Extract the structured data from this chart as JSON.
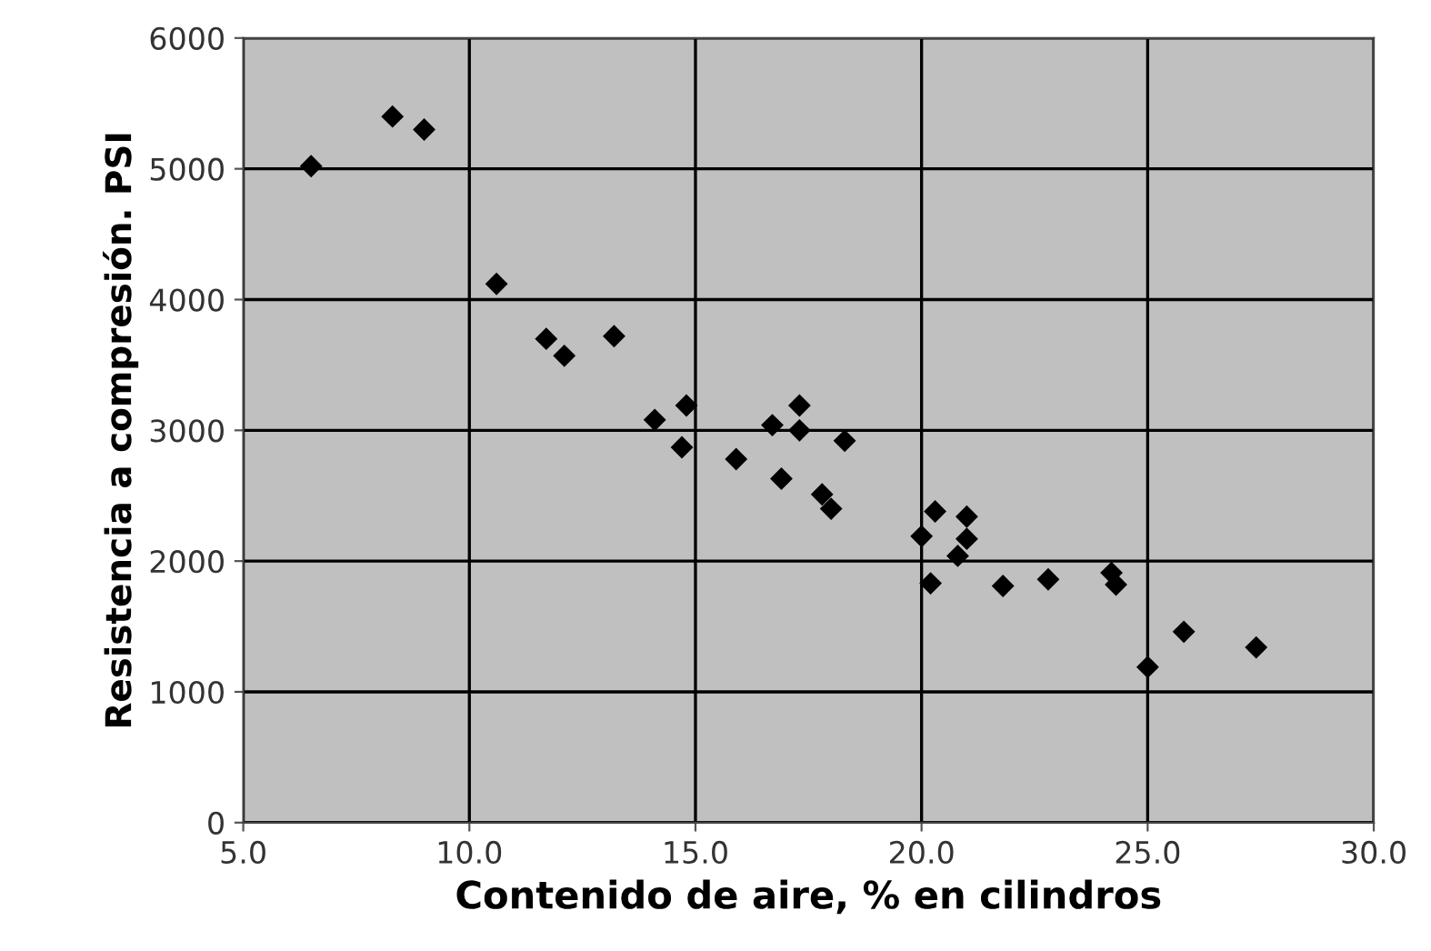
{
  "chart_data": {
    "type": "scatter",
    "xlabel": "Contenido de aire, % en cilindros",
    "ylabel": "Resistencia a compresión. PSI",
    "x": [
      6.5,
      8.3,
      9.0,
      10.6,
      11.7,
      12.1,
      13.2,
      14.1,
      14.8,
      14.7,
      15.9,
      16.7,
      17.3,
      17.3,
      16.9,
      17.8,
      18.0,
      18.3,
      20.3,
      21.0,
      20.0,
      21.0,
      20.8,
      20.2,
      21.8,
      22.8,
      24.2,
      24.3,
      25.8,
      27.4,
      25.0
    ],
    "series": [
      {
        "color": "#000000",
        "values": [
          5020,
          5400,
          5300,
          4120,
          3700,
          3570,
          3720,
          3080,
          3190,
          2870,
          2780,
          3040,
          3190,
          3000,
          2630,
          2510,
          2400,
          2920,
          2380,
          2340,
          2190,
          2170,
          2040,
          1830,
          1810,
          1860,
          1910,
          1820,
          1460,
          1340,
          1190
        ]
      }
    ],
    "xlim": [
      5,
      30
    ],
    "ylim": [
      0,
      6000
    ],
    "xticks": [
      {
        "value": 5,
        "label": "5.0"
      },
      {
        "value": 10,
        "label": "10.0"
      },
      {
        "value": 15,
        "label": "15.0"
      },
      {
        "value": 20,
        "label": "20.0"
      },
      {
        "value": 25,
        "label": "25.0"
      },
      {
        "value": 30,
        "label": "30.0"
      }
    ],
    "yticks": [
      0,
      1000,
      2000,
      3000,
      4000,
      5000,
      6000
    ],
    "grid": true,
    "marker": "diamond"
  }
}
